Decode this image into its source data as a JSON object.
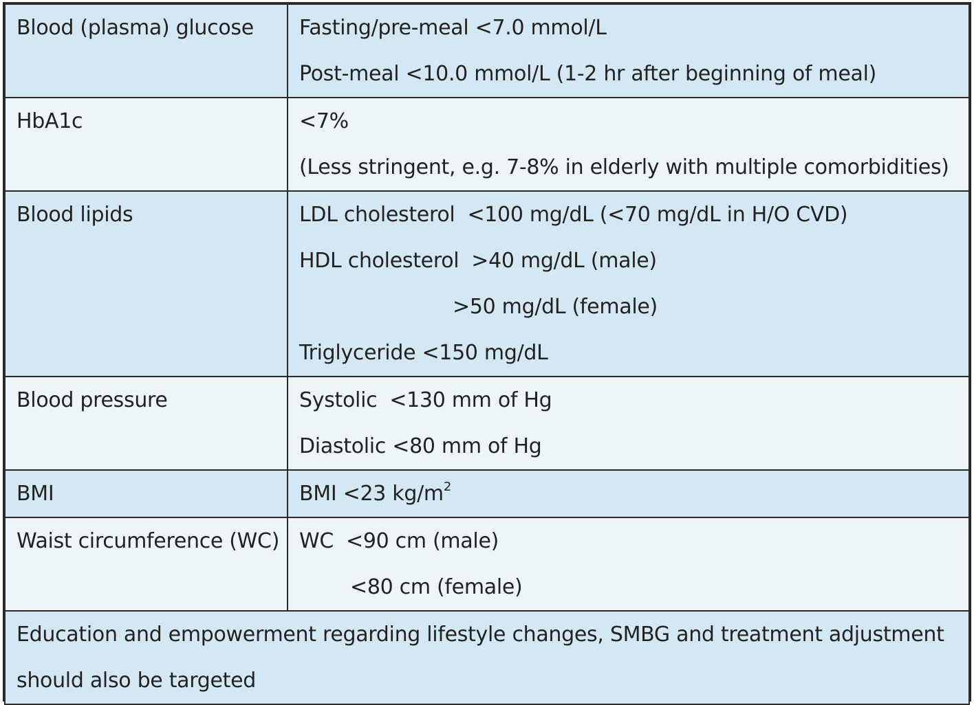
{
  "rows": [
    {
      "label": "Blood (plasma) glucose",
      "lines": [
        "Fasting/pre-meal <7.0 mmol/L",
        "Post-meal <10.0 mmol/L (1-2 hr after beginning of meal)"
      ]
    },
    {
      "label": "HbA1c",
      "lines": [
        "<7%",
        "(Less stringent, e.g. 7-8% in elderly with multiple comorbidities)"
      ]
    },
    {
      "label": "Blood lipids",
      "ldl_name": "LDL cholesterol",
      "ldl_value": "<100 mg/dL (<70 mg/dL in H/O CVD)",
      "hdl_name": "HDL cholesterol",
      "hdl_male": ">40 mg/dL (male)",
      "hdl_female": ">50 mg/dL (female)",
      "triglyceride": "Triglyceride <150 mg/dL"
    },
    {
      "label": "Blood pressure",
      "systolic_name": "Systolic",
      "systolic_value": "<130 mm of Hg",
      "diastolic": "Diastolic <80 mm of Hg"
    },
    {
      "label": "BMI",
      "value": "BMI <23 kg/m",
      "value_sup": "2"
    },
    {
      "label": "Waist circumference (WC)",
      "wc_name": "WC",
      "wc_male": "<90 cm (male)",
      "wc_female": "<80 cm (female)"
    }
  ],
  "footer": {
    "lines": [
      "Education and empowerment regarding lifestyle changes, SMBG and treatment adjustment",
      "should also be targeted"
    ]
  },
  "colors": {
    "row_dark": "#d3e8f3",
    "row_light": "#eef5f9",
    "border": "#2a2a2a",
    "text": "#222222"
  }
}
